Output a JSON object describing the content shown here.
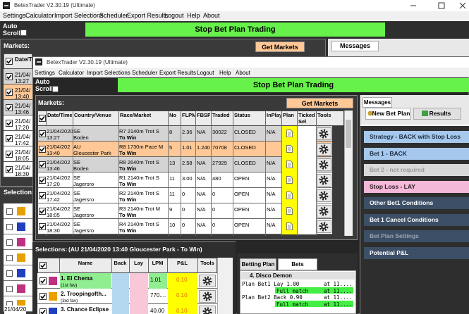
{
  "back_window": {
    "title": "BetexTrader V2.30.19 (Ultimate)",
    "menu": [
      "Settings",
      "Calculator",
      "Import Selections",
      "Scheduler",
      "Export Results",
      "Logout",
      "Help",
      "About"
    ],
    "auto_scroll": "Auto Scroll",
    "trading_button": "Stop Bet Plan Trading",
    "markets_label": "Markets:",
    "get_markets": "Get Markets",
    "messages_tab": "Messages",
    "date_header": "Date/Tim",
    "rows": [
      {
        "date": "21/04/",
        "time": "13:27"
      },
      {
        "date": "21/04/",
        "time": "13:40"
      },
      {
        "date": "21/04/",
        "time": "13:46"
      },
      {
        "date": "21/04/",
        "time": "17:20"
      },
      {
        "date": "21/04/",
        "time": "17:42"
      },
      {
        "date": "21/04/",
        "time": "18:05"
      },
      {
        "date": "21/04/",
        "time": "18:30"
      }
    ],
    "selections_label": "Selections:",
    "selection_date": "21/04/20"
  },
  "front_window": {
    "title": "BetexTrader V2.30.19 (Ultimate)",
    "menu": [
      "Settings",
      "Calculator",
      "Import Selections",
      "Scheduler",
      "Export Results",
      "Logout",
      "Help",
      "About"
    ],
    "auto_scroll": "Auto Scroll",
    "trading_button": "Stop Bet Plan Trading",
    "markets_label": "Markets:",
    "get_markets": "Get Markets",
    "markets_table": {
      "columns": [
        "Date/Time",
        "Country/Venue",
        "Race/Market",
        "No",
        "FLPM",
        "FBSP",
        "Traded",
        "Status",
        "InPlay",
        "Plan",
        "Ticked Sel",
        "Tools"
      ],
      "rows": [
        {
          "date": "21/04/2020",
          "time": "13:27",
          "country": "SE",
          "venue": "Boden",
          "race": "R7 2140m Trot S",
          "market": "To Win",
          "no": "8",
          "flpm": "2.36",
          "fbsp": "N/A",
          "traded": "30022",
          "status": "CLOSED",
          "inplay": "N/A"
        },
        {
          "date": "21/04/202",
          "time": "13:40",
          "country": "AU",
          "venue": "Gloucester Park",
          "race": "R8 1730m Pace M",
          "market": "To Win",
          "no": "5",
          "flpm": "1.01",
          "fbsp": "1.240",
          "traded": "70708",
          "status": "CLOSED",
          "inplay": ""
        },
        {
          "date": "21/04/202",
          "time": "13:46",
          "country": "SE",
          "venue": "Boden",
          "race": "R8 2640m Trot S",
          "market": "To Win",
          "no": "13",
          "flpm": "2.58",
          "fbsp": "N/A",
          "traded": "27929",
          "status": "CLOSED",
          "inplay": "N/A"
        },
        {
          "date": "21/04/202",
          "time": "17:20",
          "country": "SE",
          "venue": "Jagersro",
          "race": "R1 2140m Trot S",
          "market": "To Win",
          "no": "11",
          "flpm": "3.00",
          "fbsp": "N/A",
          "traded": "480",
          "status": "OPEN",
          "inplay": "N/A"
        },
        {
          "date": "21/04/202",
          "time": "17:42",
          "country": "SE",
          "venue": "Jagersro",
          "race": "R2 2140m Trot S",
          "market": "To Win",
          "no": "11",
          "flpm": "0",
          "fbsp": "N/A",
          "traded": "0",
          "status": "OPEN",
          "inplay": "N/A"
        },
        {
          "date": "21/04/202",
          "time": "18:05",
          "country": "SE",
          "venue": "Jagersro",
          "race": "R3 2140m Trot M",
          "market": "To Win",
          "no": "9",
          "flpm": "0",
          "fbsp": "N/A",
          "traded": "0",
          "status": "OPEN",
          "inplay": "N/A"
        },
        {
          "date": "21/04/202",
          "time": "18:30",
          "country": "SE",
          "venue": "Jagersro",
          "race": "R4 2140m Trot S",
          "market": "To Win",
          "no": "10",
          "flpm": "0",
          "fbsp": "N/A",
          "traded": "0",
          "status": "OPEN",
          "inplay": "N/A"
        }
      ]
    },
    "selections": {
      "label": "Selections:",
      "context": "(AU 21/04/2020 13:40 Gloucester Park - To Win)",
      "columns": [
        "Name",
        "Back",
        "Lay",
        "LPM",
        "P&L",
        "Tools"
      ],
      "rows": [
        {
          "name": "1. El Chema",
          "note": "(1st fav)",
          "lpm": "1.01",
          "pnl": "0.10"
        },
        {
          "name": "2. Troopingofth...",
          "note": "(3rd fav)",
          "lpm": "770....",
          "pnl": "0.10"
        },
        {
          "name": "3. Chance Eclipse",
          "note": "",
          "lpm": "40.00",
          "pnl": "0.10"
        }
      ]
    },
    "bet_panel": {
      "tabs": [
        "Betting Plan",
        "Bets"
      ],
      "runner": "4. Disco Demon",
      "lines": [
        {
          "text": "Plan Bet1 Lay  1.00",
          "time": "at 11...."
        },
        {
          "text": "Full match",
          "time": "at 11...."
        },
        {
          "text": "Plan Bet2 Back 0.90",
          "time": "at 11...."
        },
        {
          "text": "Full match",
          "time": "at 11...."
        }
      ]
    },
    "messages": {
      "tab": "Messages",
      "subtabs": [
        "New Bet Plan",
        "Results"
      ],
      "items": [
        "Strategy - BACK with Stop Loss",
        "Bet 1 - BACK",
        "Bet 2 - not required",
        "Stop Loss - LAY",
        "Other Bet1 Conditions",
        "Bet 1 Cancel Conditions",
        "Bet Plan Settings",
        "Potential P&L"
      ]
    }
  }
}
